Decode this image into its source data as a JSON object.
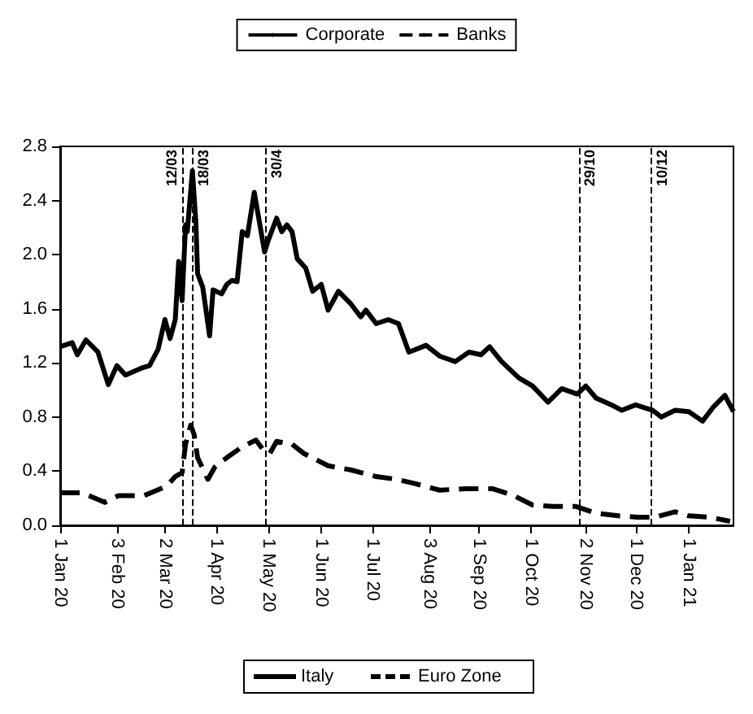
{
  "chart_data": {
    "type": "line",
    "series": [
      {
        "name": "Corporate",
        "color": "#000000",
        "line_style": "solid",
        "x": [
          "2020-01-01",
          "2020-01-08",
          "2020-01-11",
          "2020-01-16",
          "2020-01-23",
          "2020-01-29",
          "2020-02-03",
          "2020-02-08",
          "2020-02-17",
          "2020-02-22",
          "2020-02-27",
          "2020-03-02",
          "2020-03-05",
          "2020-03-08",
          "2020-03-10",
          "2020-03-12",
          "2020-03-14",
          "2020-03-15",
          "2020-03-18",
          "2020-03-20",
          "2020-03-21",
          "2020-03-24",
          "2020-03-28",
          "2020-03-30",
          "2020-04-04",
          "2020-04-07",
          "2020-04-10",
          "2020-04-13",
          "2020-04-16",
          "2020-04-19",
          "2020-04-23",
          "2020-04-26",
          "2020-04-29",
          "2020-05-01",
          "2020-05-06",
          "2020-05-09",
          "2020-05-12",
          "2020-05-15",
          "2020-05-18",
          "2020-05-23",
          "2020-05-27",
          "2020-06-01",
          "2020-06-05",
          "2020-06-11",
          "2020-06-18",
          "2020-06-24",
          "2020-06-27",
          "2020-07-03",
          "2020-07-10",
          "2020-07-16",
          "2020-07-22",
          "2020-08-01",
          "2020-08-09",
          "2020-08-18",
          "2020-08-26",
          "2020-09-02",
          "2020-09-07",
          "2020-09-14",
          "2020-09-24",
          "2020-10-02",
          "2020-10-11",
          "2020-10-19",
          "2020-10-28",
          "2020-11-02",
          "2020-11-08",
          "2020-11-17",
          "2020-11-23",
          "2020-12-01",
          "2020-12-11",
          "2020-12-16",
          "2020-12-24",
          "2021-01-01",
          "2021-01-09",
          "2021-01-15",
          "2021-01-22",
          "2021-01-27"
        ],
        "values": [
          1.32,
          1.35,
          1.26,
          1.37,
          1.28,
          1.04,
          1.18,
          1.11,
          1.16,
          1.18,
          1.3,
          1.52,
          1.38,
          1.52,
          1.95,
          1.66,
          2.22,
          2.17,
          2.62,
          2.24,
          1.86,
          1.76,
          1.4,
          1.74,
          1.71,
          1.78,
          1.81,
          1.8,
          2.17,
          2.14,
          2.46,
          2.24,
          2.02,
          2.1,
          2.27,
          2.17,
          2.22,
          2.17,
          1.97,
          1.9,
          1.73,
          1.78,
          1.59,
          1.73,
          1.64,
          1.54,
          1.59,
          1.49,
          1.52,
          1.49,
          1.28,
          1.33,
          1.25,
          1.21,
          1.28,
          1.26,
          1.32,
          1.21,
          1.09,
          1.03,
          0.91,
          1.01,
          0.97,
          1.03,
          0.94,
          0.89,
          0.85,
          0.89,
          0.85,
          0.8,
          0.85,
          0.84,
          0.77,
          0.87,
          0.96,
          0.84
        ]
      },
      {
        "name": "Banks",
        "color": "#000000",
        "line_style": "dashed",
        "x": [
          "2020-01-01",
          "2020-01-14",
          "2020-01-27",
          "2020-02-04",
          "2020-02-19",
          "2020-03-03",
          "2020-03-08",
          "2020-03-12",
          "2020-03-14",
          "2020-03-17",
          "2020-03-19",
          "2020-03-21",
          "2020-03-27",
          "2020-03-31",
          "2020-04-07",
          "2020-04-16",
          "2020-04-24",
          "2020-04-28",
          "2020-05-02",
          "2020-05-06",
          "2020-05-15",
          "2020-05-22",
          "2020-06-05",
          "2020-06-18",
          "2020-07-03",
          "2020-07-15",
          "2020-07-25",
          "2020-08-09",
          "2020-08-24",
          "2020-09-09",
          "2020-09-21",
          "2020-10-02",
          "2020-10-14",
          "2020-10-27",
          "2020-11-08",
          "2020-11-21",
          "2020-12-02",
          "2020-12-12",
          "2020-12-24",
          "2021-01-01",
          "2021-01-13",
          "2021-01-25"
        ],
        "values": [
          0.24,
          0.24,
          0.17,
          0.22,
          0.22,
          0.29,
          0.36,
          0.39,
          0.6,
          0.74,
          0.67,
          0.5,
          0.34,
          0.43,
          0.5,
          0.58,
          0.63,
          0.56,
          0.53,
          0.62,
          0.6,
          0.53,
          0.44,
          0.41,
          0.36,
          0.34,
          0.31,
          0.26,
          0.27,
          0.27,
          0.22,
          0.15,
          0.14,
          0.14,
          0.09,
          0.07,
          0.06,
          0.06,
          0.1,
          0.07,
          0.06,
          0.03
        ]
      }
    ],
    "xlim": [
      "2020-01-01",
      "2021-01-27"
    ],
    "xticks": [
      {
        "value": "2020-01-01",
        "label": "1 Jan 20"
      },
      {
        "value": "2020-02-03",
        "label": "3 Feb 20"
      },
      {
        "value": "2020-03-02",
        "label": "2 Mar 20"
      },
      {
        "value": "2020-04-01",
        "label": "1 Apr 20"
      },
      {
        "value": "2020-05-01",
        "label": "1 May 20"
      },
      {
        "value": "2020-06-01",
        "label": "1 Jun 20"
      },
      {
        "value": "2020-07-01",
        "label": "1 Jul 20"
      },
      {
        "value": "2020-08-03",
        "label": "3 Aug 20"
      },
      {
        "value": "2020-09-01",
        "label": "1 Sep 20"
      },
      {
        "value": "2020-10-01",
        "label": "1 Oct 20"
      },
      {
        "value": "2020-11-02",
        "label": "2 Nov 20"
      },
      {
        "value": "2020-12-01",
        "label": "1 Dec 20"
      },
      {
        "value": "2021-01-01",
        "label": "1 Jan 21"
      }
    ],
    "ylim": [
      0,
      2.8
    ],
    "yticks": [
      {
        "value": 0,
        "label": "0.0"
      },
      {
        "value": 0.4,
        "label": "0.4"
      },
      {
        "value": 0.8,
        "label": "0.8"
      },
      {
        "value": 1.2,
        "label": "1.2"
      },
      {
        "value": 1.6,
        "label": "1.6"
      },
      {
        "value": 2.0,
        "label": "2.0"
      },
      {
        "value": 2.4,
        "label": "2.4"
      },
      {
        "value": 2.8,
        "label": "2.8"
      }
    ],
    "ref_lines": [
      {
        "axis": "x",
        "value": "2020-03-12",
        "label": "12/03",
        "line_style": "dashed"
      },
      {
        "axis": "x",
        "value": "2020-03-18",
        "label": "18/03",
        "line_style": "dashed"
      },
      {
        "axis": "x",
        "value": "2020-04-30",
        "label": "30/4",
        "line_style": "dashed"
      },
      {
        "axis": "x",
        "value": "2020-10-29",
        "label": "29/10",
        "line_style": "dashed"
      },
      {
        "axis": "x",
        "value": "2020-12-10",
        "label": "10/12",
        "line_style": "dashed"
      }
    ],
    "annotations": [
      "Italy",
      "Euro Zone"
    ],
    "legend": "top",
    "grid": false,
    "marker": "none"
  }
}
